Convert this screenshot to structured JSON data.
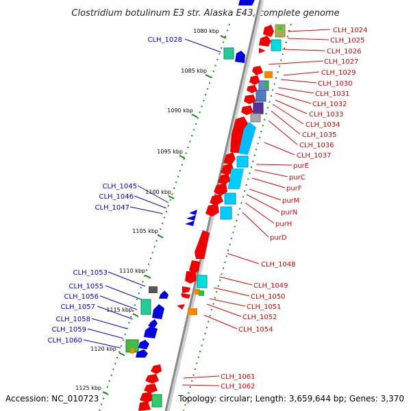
{
  "title": "Clostridium botulinum E3 str. Alaska E43, complete genome",
  "accession": "Accession: NC_010723",
  "topology": "Topology: circular; Length: 3,659,644 bp; Genes: 3,370",
  "colors": {
    "left_label": "#0000cc",
    "right_label": "#dd0000",
    "tick": "#118811",
    "backbone": "#999999"
  },
  "kbp_labels": [
    "1080 kbp",
    "1085 kbp",
    "1090 kbp",
    "1095 kbp",
    "1100 kbp",
    "1105 kbp",
    "1110 kbp",
    "1115 kbp",
    "1120 kbp",
    "1125 kbp"
  ],
  "left_genes": [
    "CLH_1028",
    "CLH_1045",
    "CLH_1046",
    "CLH_1047",
    "CLH_1053",
    "CLH_1055",
    "CLH_1056",
    "CLH_1057",
    "CLH_1058",
    "CLH_1059",
    "CLH_1060"
  ],
  "right_genes": [
    "CLH_1024",
    "CLH_1025",
    "CLH_1026",
    "CLH_1027",
    "CLH_1029",
    "CLH_1030",
    "CLH_1031",
    "CLH_1032",
    "CLH_1033",
    "CLH_1034",
    "CLH_1035",
    "CLH_1036",
    "CLH_1037",
    "purE",
    "purC",
    "purF",
    "purM",
    "purN",
    "purH",
    "purD",
    "CLH_1048",
    "CLH_1049",
    "CLH_1050",
    "CLH_1051",
    "CLH_1052",
    "CLH_1054",
    "CLH_1061",
    "CLH_1062"
  ]
}
